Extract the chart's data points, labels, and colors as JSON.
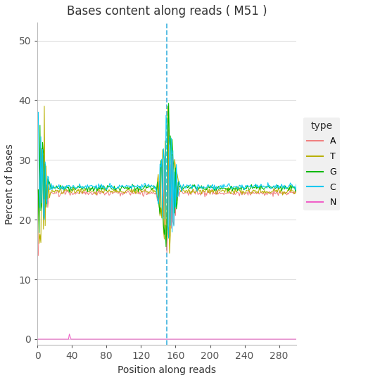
{
  "title": "Bases content along reads ( M51 )",
  "xlabel": "Position along reads",
  "ylabel": "Percent of bases",
  "xlim": [
    0,
    300
  ],
  "ylim": [
    -1,
    53
  ],
  "xticks": [
    0,
    40,
    80,
    120,
    160,
    200,
    240,
    280
  ],
  "yticks": [
    0,
    10,
    20,
    30,
    40,
    50
  ],
  "dashed_vline_x": 150,
  "dashed_vline_color": "#4ab8e0",
  "colors": {
    "A": "#f08080",
    "T": "#b8b000",
    "G": "#00b800",
    "C": "#00c8f0",
    "N": "#f060c8"
  },
  "legend_title": "type",
  "background_color": "#ffffff",
  "panel_background": "#ffffff",
  "stable_A": 24.5,
  "stable_T": 24.8,
  "stable_G": 25.3,
  "stable_C": 25.5,
  "figsize": [
    5.4,
    5.4
  ],
  "dpi": 100
}
